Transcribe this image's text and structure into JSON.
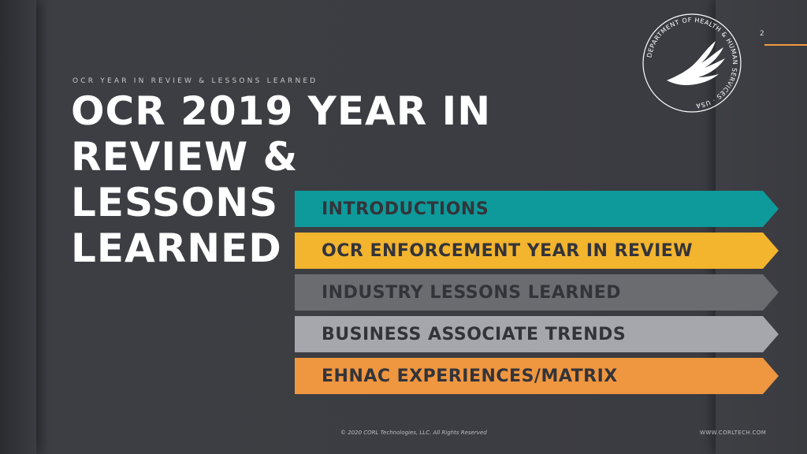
{
  "slide": {
    "page_number": "2",
    "kicker": "OCR YEAR IN REVIEW & LESSONS LEARNED",
    "title_lines": [
      "OCR 2019 YEAR IN",
      "REVIEW & LESSONS",
      "LEARNED"
    ],
    "seal_text": "DEPARTMENT OF HEALTH & HUMAN SERVICES · USA",
    "agenda": [
      {
        "label": "INTRODUCTIONS",
        "color": "#0e9a9b"
      },
      {
        "label": "OCR ENFORCEMENT YEAR IN REVIEW",
        "color": "#f3b42e"
      },
      {
        "label": "INDUSTRY LESSONS LEARNED",
        "color": "#6b6c70"
      },
      {
        "label": "BUSINESS ASSOCIATE TRENDS",
        "color": "#a6a7ad"
      },
      {
        "label": "EHNAC EXPERIENCES/MATRIX",
        "color": "#ef9640"
      }
    ],
    "footer_copyright": "© 2020 CORL Technologies, LLC. All Rights Reserved",
    "footer_url": "WWW.CORLTECH.COM",
    "accent_color": "#f29b3c"
  }
}
